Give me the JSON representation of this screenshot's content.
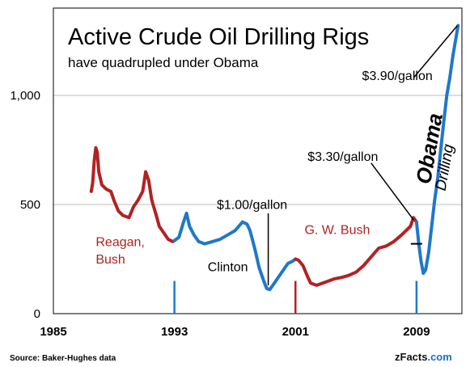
{
  "chart_data": {
    "type": "line",
    "title": "Active Crude Oil Drilling Rigs",
    "subtitle": "have quadrupled  under Obama",
    "xlabel": "",
    "ylabel": "",
    "xlim": [
      1985,
      2012
    ],
    "ylim": [
      0,
      1400
    ],
    "x_ticks": [
      1985,
      1993,
      2001,
      2009
    ],
    "y_ticks": [
      {
        "value": 0,
        "label": "0"
      },
      {
        "value": 500,
        "label": "500"
      },
      {
        "value": 1000,
        "label": "1,000"
      }
    ],
    "grid": "horizontal",
    "legend": "none",
    "series": [
      {
        "color": "#b22222",
        "points": [
          [
            1987.5,
            560
          ],
          [
            1987.6,
            600
          ],
          [
            1987.7,
            700
          ],
          [
            1987.8,
            760
          ],
          [
            1987.9,
            740
          ],
          [
            1988.0,
            650
          ],
          [
            1988.2,
            590
          ],
          [
            1988.5,
            570
          ],
          [
            1988.8,
            560
          ],
          [
            1989.0,
            520
          ],
          [
            1989.3,
            470
          ],
          [
            1989.6,
            450
          ],
          [
            1990.0,
            440
          ],
          [
            1990.3,
            490
          ],
          [
            1990.6,
            520
          ],
          [
            1990.9,
            560
          ],
          [
            1991.1,
            650
          ],
          [
            1991.3,
            610
          ],
          [
            1991.5,
            520
          ],
          [
            1991.8,
            450
          ],
          [
            1992.0,
            400
          ],
          [
            1992.3,
            370
          ],
          [
            1992.6,
            340
          ],
          [
            1992.9,
            330
          ],
          [
            1993.0,
            335
          ]
        ]
      },
      {
        "color": "#1f78c8",
        "points": [
          [
            1993.0,
            335
          ],
          [
            1993.3,
            350
          ],
          [
            1993.6,
            420
          ],
          [
            1993.8,
            460
          ],
          [
            1994.0,
            400
          ],
          [
            1994.3,
            360
          ],
          [
            1994.6,
            330
          ],
          [
            1995.0,
            320
          ],
          [
            1995.5,
            330
          ],
          [
            1996.0,
            340
          ],
          [
            1996.5,
            360
          ],
          [
            1997.0,
            380
          ],
          [
            1997.5,
            420
          ],
          [
            1997.8,
            410
          ],
          [
            1998.0,
            380
          ],
          [
            1998.3,
            300
          ],
          [
            1998.6,
            210
          ],
          [
            1998.9,
            150
          ],
          [
            1999.1,
            115
          ],
          [
            1999.3,
            110
          ],
          [
            1999.6,
            140
          ],
          [
            1999.9,
            170
          ],
          [
            2000.2,
            200
          ],
          [
            2000.5,
            230
          ],
          [
            2000.8,
            240
          ],
          [
            2001.0,
            250
          ]
        ]
      },
      {
        "color": "#b22222",
        "points": [
          [
            2001.0,
            250
          ],
          [
            2001.2,
            245
          ],
          [
            2001.5,
            220
          ],
          [
            2001.8,
            170
          ],
          [
            2002.0,
            140
          ],
          [
            2002.4,
            130
          ],
          [
            2002.8,
            140
          ],
          [
            2003.2,
            150
          ],
          [
            2003.6,
            160
          ],
          [
            2004.0,
            165
          ],
          [
            2004.5,
            175
          ],
          [
            2005.0,
            190
          ],
          [
            2005.5,
            220
          ],
          [
            2006.0,
            260
          ],
          [
            2006.5,
            300
          ],
          [
            2007.0,
            310
          ],
          [
            2007.5,
            330
          ],
          [
            2008.0,
            360
          ],
          [
            2008.3,
            380
          ],
          [
            2008.6,
            400
          ],
          [
            2008.8,
            440
          ],
          [
            2009.0,
            420
          ]
        ]
      },
      {
        "color": "#1f78c8",
        "points": [
          [
            2009.0,
            420
          ],
          [
            2009.15,
            320
          ],
          [
            2009.3,
            240
          ],
          [
            2009.45,
            185
          ],
          [
            2009.6,
            200
          ],
          [
            2009.8,
            280
          ],
          [
            2010.0,
            400
          ],
          [
            2010.2,
            520
          ],
          [
            2010.4,
            620
          ],
          [
            2010.6,
            750
          ],
          [
            2010.8,
            880
          ],
          [
            2011.0,
            1000
          ],
          [
            2011.2,
            1080
          ],
          [
            2011.4,
            1180
          ],
          [
            2011.6,
            1260
          ],
          [
            2011.75,
            1320
          ]
        ]
      }
    ],
    "markers": [
      {
        "x": 1993.0,
        "y_top": 150,
        "color": "#1f78c8"
      },
      {
        "x": 2001.0,
        "y_top": 150,
        "color": "#b22222"
      },
      {
        "x": 2009.0,
        "y_top": 150,
        "color": "#1f78c8"
      }
    ],
    "annotations": [
      {
        "text": "$3.90/gallon",
        "class": "ann-black",
        "label_at": [
          2005.4,
          1070
        ],
        "line_from": [
          2008.8,
          1080
        ],
        "line_to": [
          2011.7,
          1320
        ]
      },
      {
        "text": "$3.30/gallon",
        "class": "ann-black",
        "label_at": [
          2001.8,
          700
        ],
        "line_from": [
          2006.0,
          690
        ],
        "line_to": [
          2008.8,
          430
        ]
      },
      {
        "text": "$1.00/gallon",
        "class": "ann-black",
        "label_at": [
          1995.8,
          480
        ],
        "line_from": [
          1999.2,
          460
        ],
        "line_to": [
          1999.2,
          130
        ]
      },
      {
        "text": "Reagan,",
        "class": "ann-red",
        "label_at": [
          1987.8,
          310
        ]
      },
      {
        "text": "Bush",
        "class": "ann-red",
        "label_at": [
          1987.8,
          230
        ]
      },
      {
        "text": "Clinton",
        "class": "ann-black",
        "label_at": [
          1995.2,
          195
        ]
      },
      {
        "text": "G. W. Bush",
        "class": "ann-red",
        "label_at": [
          2001.6,
          365
        ]
      },
      {
        "text": "Obama",
        "class": "ann-obama",
        "rotate": -80,
        "label_at": [
          2009.9,
          590
        ]
      },
      {
        "text": "Drilling",
        "class": "ann-drilling",
        "rotate": -80,
        "label_at": [
          2010.9,
          560
        ]
      }
    ],
    "obama_start_marker": {
      "x": 2009.0,
      "y": 320
    }
  },
  "footer": {
    "source": "Source: Baker-Hughes data",
    "brand_main": "zFacts",
    "brand_suffix": ".com"
  }
}
